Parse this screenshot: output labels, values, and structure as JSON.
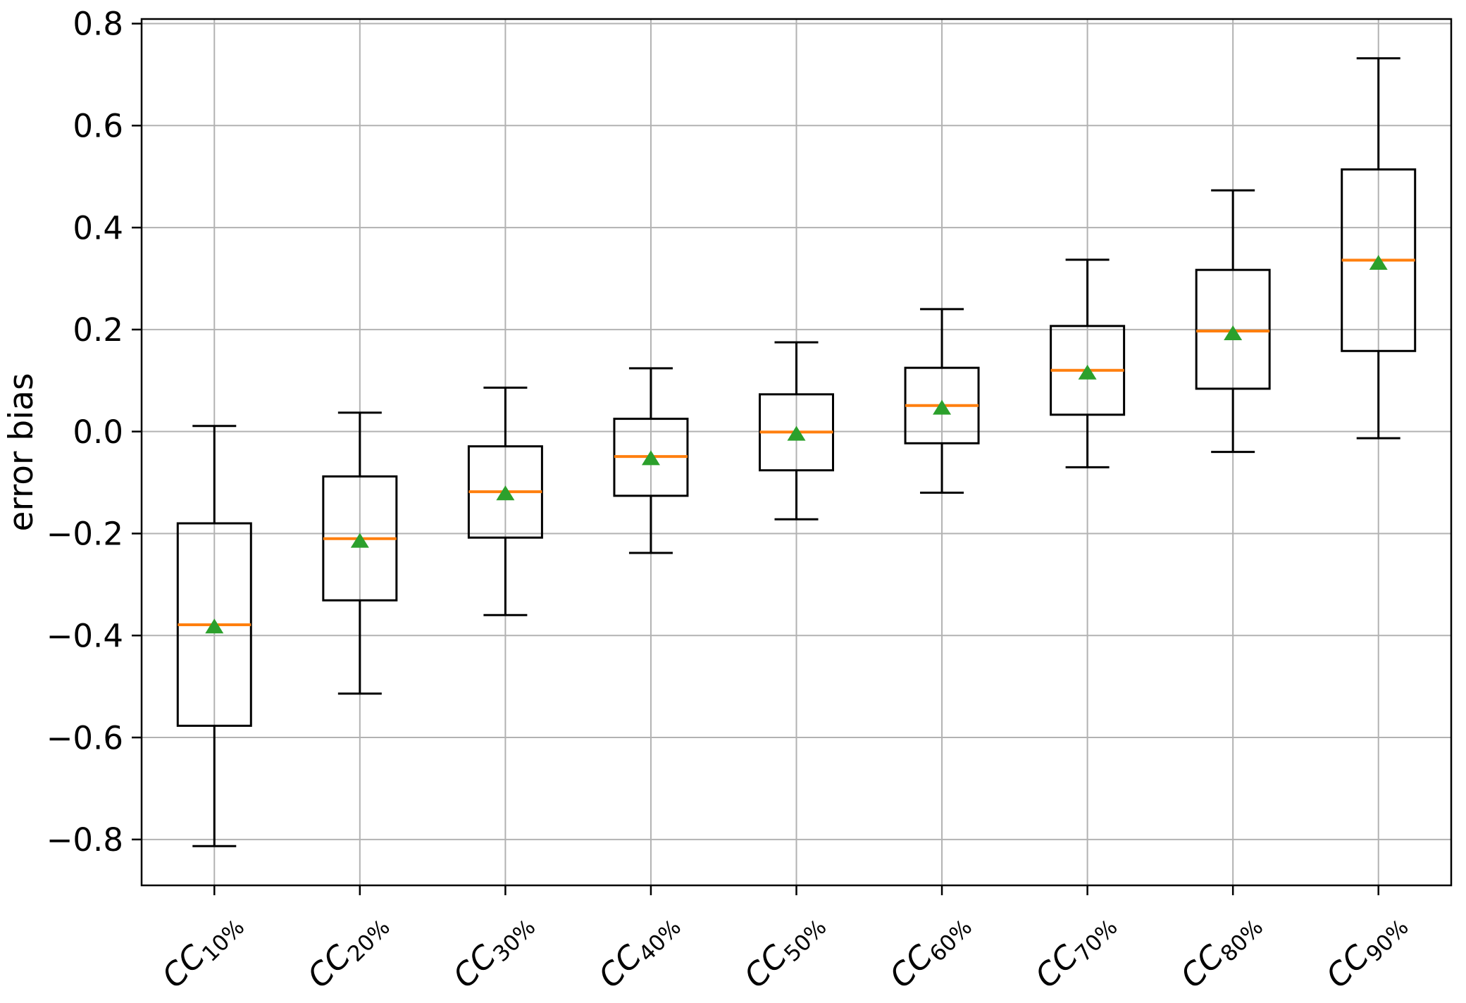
{
  "figure": {
    "background": "#ffffff"
  },
  "chart_data": {
    "type": "boxplot",
    "title": "",
    "xlabel": "",
    "ylabel": "error bias",
    "ylim": [
      -0.89,
      0.809
    ],
    "grid": true,
    "legend": null,
    "ytick_values": [
      0.8,
      0.6,
      0.4,
      0.2,
      0.0,
      -0.2,
      -0.4,
      -0.6,
      -0.8
    ],
    "ytick_labels": [
      "0.8",
      "0.6",
      "0.4",
      "0.2",
      "0.0",
      "−0.2",
      "−0.4",
      "−0.6",
      "−0.8"
    ],
    "categories": [
      {
        "main": "CC",
        "sub": "10%"
      },
      {
        "main": "CC",
        "sub": "20%"
      },
      {
        "main": "CC",
        "sub": "30%"
      },
      {
        "main": "CC",
        "sub": "40%"
      },
      {
        "main": "CC",
        "sub": "50%"
      },
      {
        "main": "CC",
        "sub": "60%"
      },
      {
        "main": "CC",
        "sub": "70%"
      },
      {
        "main": "CC",
        "sub": "80%"
      },
      {
        "main": "CC",
        "sub": "90%"
      }
    ],
    "boxes": [
      {
        "label": "CC10%",
        "whislo": -0.813,
        "q1": -0.577,
        "med": -0.379,
        "mean": -0.382,
        "q3": -0.18,
        "whishi": 0.011
      },
      {
        "label": "CC20%",
        "whislo": -0.514,
        "q1": -0.331,
        "med": -0.21,
        "mean": -0.214,
        "q3": -0.088,
        "whishi": 0.037
      },
      {
        "label": "CC30%",
        "whislo": -0.36,
        "q1": -0.208,
        "med": -0.118,
        "mean": -0.121,
        "q3": -0.029,
        "whishi": 0.086
      },
      {
        "label": "CC40%",
        "whislo": -0.238,
        "q1": -0.126,
        "med": -0.049,
        "mean": -0.052,
        "q3": 0.025,
        "whishi": 0.124
      },
      {
        "label": "CC50%",
        "whislo": -0.172,
        "q1": -0.076,
        "med": -0.001,
        "mean": -0.004,
        "q3": 0.073,
        "whishi": 0.175
      },
      {
        "label": "CC60%",
        "whislo": -0.12,
        "q1": -0.023,
        "med": 0.051,
        "mean": 0.047,
        "q3": 0.125,
        "whishi": 0.24
      },
      {
        "label": "CC70%",
        "whislo": -0.07,
        "q1": 0.033,
        "med": 0.12,
        "mean": 0.116,
        "q3": 0.207,
        "whishi": 0.337
      },
      {
        "label": "CC80%",
        "whislo": -0.04,
        "q1": 0.084,
        "med": 0.197,
        "mean": 0.193,
        "q3": 0.317,
        "whishi": 0.473
      },
      {
        "label": "CC90%",
        "whislo": -0.013,
        "q1": 0.158,
        "med": 0.336,
        "mean": 0.331,
        "q3": 0.514,
        "whishi": 0.732
      }
    ],
    "colors": {
      "box_edge": "#000000",
      "whisker": "#000000",
      "median": "#ff7f0e",
      "mean_marker": "#2ca02c",
      "grid": "#b2b2b2",
      "spine": "#000000",
      "text": "#000000",
      "background": "#ffffff"
    }
  }
}
